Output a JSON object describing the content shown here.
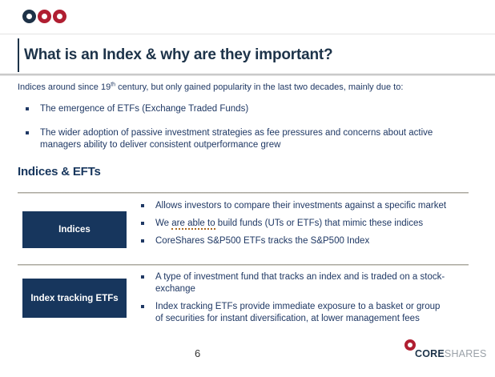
{
  "slide": {
    "title": "What is an Index & why are they important?",
    "intro": {
      "prefix": "Indices around since 19",
      "superscript": "th",
      "suffix": " century, but only gained popularity in the last two decades, mainly due to:"
    },
    "intro_bullets": [
      "The emergence of ETFs (Exchange Traded Funds)",
      "The wider adoption of passive investment strategies as fee pressures and concerns about active managers ability to deliver consistent outperformance grew"
    ],
    "section_heading": "Indices & EFTs",
    "rows": [
      {
        "label": "Indices",
        "bullets": [
          {
            "text": "Allows investors to compare their investments against a specific market"
          },
          {
            "pre": "We ",
            "flagged": "are able to",
            "post": " build funds (UTs or ETFs) that mimic these indices"
          },
          {
            "text": "CoreShares S&P500 ETFs tracks the S&P500 Index"
          }
        ]
      },
      {
        "label": "Index tracking ETFs",
        "bullets": [
          {
            "text": "A type of investment fund that tracks an index and is traded on a stock-exchange"
          },
          {
            "text": "Index tracking ETFs provide immediate exposure to a basket or group of securities for instant diversification, at lower management fees"
          }
        ]
      }
    ],
    "page_number": "6",
    "logo": {
      "bold": "CORE",
      "light": "SHARES"
    },
    "colors": {
      "navy_text": "#1f3864",
      "title_navy": "#1d3349",
      "box_navy": "#17365d",
      "brand_red": "#b01e31",
      "divider_gray": "#95938a",
      "proofing_underline": "#ad6a1f",
      "logo_light_gray": "#9aa1a8"
    }
  }
}
